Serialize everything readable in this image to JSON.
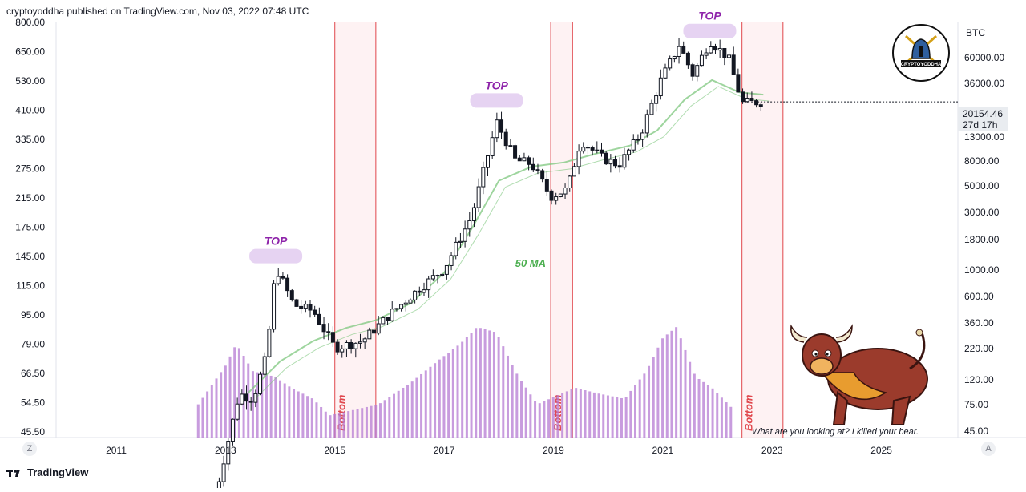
{
  "header": {
    "publish_line": "cryptoyoddha published on TradingView.com, Nov 03, 2022 07:48 UTC"
  },
  "footer": {
    "brand": "TradingView"
  },
  "buttons": {
    "left_corner": "Z",
    "right_corner": "A"
  },
  "price_tag": {
    "price": "20154.46",
    "countdown": "27d 17h"
  },
  "badge": {
    "brand": "CRYPTOYODDHA"
  },
  "caption": "What are you looking at? I killed your bear.",
  "chart_data": {
    "type": "candlestick",
    "right_axis_title": "BTC",
    "left_axis_ticks": [
      "800.00",
      "650.00",
      "530.00",
      "410.00",
      "335.00",
      "275.00",
      "215.00",
      "175.00",
      "145.00",
      "115.00",
      "95.00",
      "79.00",
      "66.50",
      "54.50",
      "45.50"
    ],
    "right_axis_ticks": [
      "60000.00",
      "36000.00",
      "13000.00",
      "8000.00",
      "5000.00",
      "3000.00",
      "1800.00",
      "1000.00",
      "600.00",
      "360.00",
      "220.00",
      "120.00",
      "75.00",
      "45.00"
    ],
    "x_ticks": [
      "2011",
      "2013",
      "2015",
      "2017",
      "2019",
      "2021",
      "2023",
      "2025"
    ],
    "y_scale": "log",
    "annotations": {
      "top_label": "TOP",
      "bottom_label": "Bottom",
      "ma_label": "50 MA"
    },
    "tops": [
      {
        "label": "TOP",
        "time": 2013.92,
        "price": 1150
      },
      {
        "label": "TOP",
        "time": 2017.96,
        "price": 19500
      },
      {
        "label": "TOP",
        "time": 2021.86,
        "price": 69000
      }
    ],
    "bottom_zones": [
      {
        "label": "Bottom",
        "start": 2015.0,
        "end": 2015.75
      },
      {
        "label": "Bottom",
        "start": 2018.95,
        "end": 2019.35
      },
      {
        "label": "Bottom",
        "start": 2022.45,
        "end": 2023.2
      }
    ],
    "close_prices": [
      {
        "t": 2012.75,
        "p": 12
      },
      {
        "t": 2013.25,
        "p": 100
      },
      {
        "t": 2013.5,
        "p": 90
      },
      {
        "t": 2013.75,
        "p": 200
      },
      {
        "t": 2013.92,
        "p": 1000
      },
      {
        "t": 2014.25,
        "p": 500
      },
      {
        "t": 2014.6,
        "p": 450
      },
      {
        "t": 2015.0,
        "p": 230
      },
      {
        "t": 2015.5,
        "p": 260
      },
      {
        "t": 2016.0,
        "p": 420
      },
      {
        "t": 2016.5,
        "p": 650
      },
      {
        "t": 2017.0,
        "p": 970
      },
      {
        "t": 2017.5,
        "p": 2500
      },
      {
        "t": 2017.96,
        "p": 14000
      },
      {
        "t": 2018.3,
        "p": 7000
      },
      {
        "t": 2018.6,
        "p": 6500
      },
      {
        "t": 2018.95,
        "p": 3600
      },
      {
        "t": 2019.25,
        "p": 4100
      },
      {
        "t": 2019.5,
        "p": 10000
      },
      {
        "t": 2019.9,
        "p": 7200
      },
      {
        "t": 2020.2,
        "p": 6400
      },
      {
        "t": 2020.6,
        "p": 11300
      },
      {
        "t": 2020.95,
        "p": 29000
      },
      {
        "t": 2021.3,
        "p": 57000
      },
      {
        "t": 2021.55,
        "p": 33000
      },
      {
        "t": 2021.86,
        "p": 61000
      },
      {
        "t": 2022.2,
        "p": 45000
      },
      {
        "t": 2022.45,
        "p": 19800
      },
      {
        "t": 2022.84,
        "p": 20154.46
      }
    ],
    "ma50": [
      {
        "t": 2013.35,
        "p": 95
      },
      {
        "t": 2014.0,
        "p": 180
      },
      {
        "t": 2014.6,
        "p": 260
      },
      {
        "t": 2015.2,
        "p": 330
      },
      {
        "t": 2015.75,
        "p": 380
      },
      {
        "t": 2016.4,
        "p": 520
      },
      {
        "t": 2017.0,
        "p": 900
      },
      {
        "t": 2017.5,
        "p": 2000
      },
      {
        "t": 2018.0,
        "p": 4800
      },
      {
        "t": 2018.6,
        "p": 6200
      },
      {
        "t": 2019.2,
        "p": 6700
      },
      {
        "t": 2019.8,
        "p": 7900
      },
      {
        "t": 2020.4,
        "p": 9100
      },
      {
        "t": 2020.9,
        "p": 12000
      },
      {
        "t": 2021.4,
        "p": 21000
      },
      {
        "t": 2021.9,
        "p": 30000
      },
      {
        "t": 2022.4,
        "p": 24000
      },
      {
        "t": 2022.84,
        "p": 23000
      }
    ],
    "volume_profile": [
      {
        "t": 2012.5,
        "v": 0.3
      },
      {
        "t": 2013.0,
        "v": 0.65
      },
      {
        "t": 2013.2,
        "v": 0.85
      },
      {
        "t": 2013.5,
        "v": 0.6
      },
      {
        "t": 2013.9,
        "v": 0.55
      },
      {
        "t": 2014.2,
        "v": 0.45
      },
      {
        "t": 2014.6,
        "v": 0.35
      },
      {
        "t": 2014.9,
        "v": 0.2
      },
      {
        "t": 2015.8,
        "v": 0.3
      },
      {
        "t": 2016.4,
        "v": 0.5
      },
      {
        "t": 2016.9,
        "v": 0.7
      },
      {
        "t": 2017.3,
        "v": 0.85
      },
      {
        "t": 2017.6,
        "v": 1.0
      },
      {
        "t": 2017.96,
        "v": 0.95
      },
      {
        "t": 2018.3,
        "v": 0.6
      },
      {
        "t": 2018.7,
        "v": 0.3
      },
      {
        "t": 2019.4,
        "v": 0.45
      },
      {
        "t": 2019.8,
        "v": 0.4
      },
      {
        "t": 2020.3,
        "v": 0.35
      },
      {
        "t": 2020.7,
        "v": 0.6
      },
      {
        "t": 2021.0,
        "v": 0.9
      },
      {
        "t": 2021.25,
        "v": 1.0
      },
      {
        "t": 2021.6,
        "v": 0.55
      },
      {
        "t": 2021.9,
        "v": 0.45
      },
      {
        "t": 2022.3,
        "v": 0.25
      }
    ]
  }
}
